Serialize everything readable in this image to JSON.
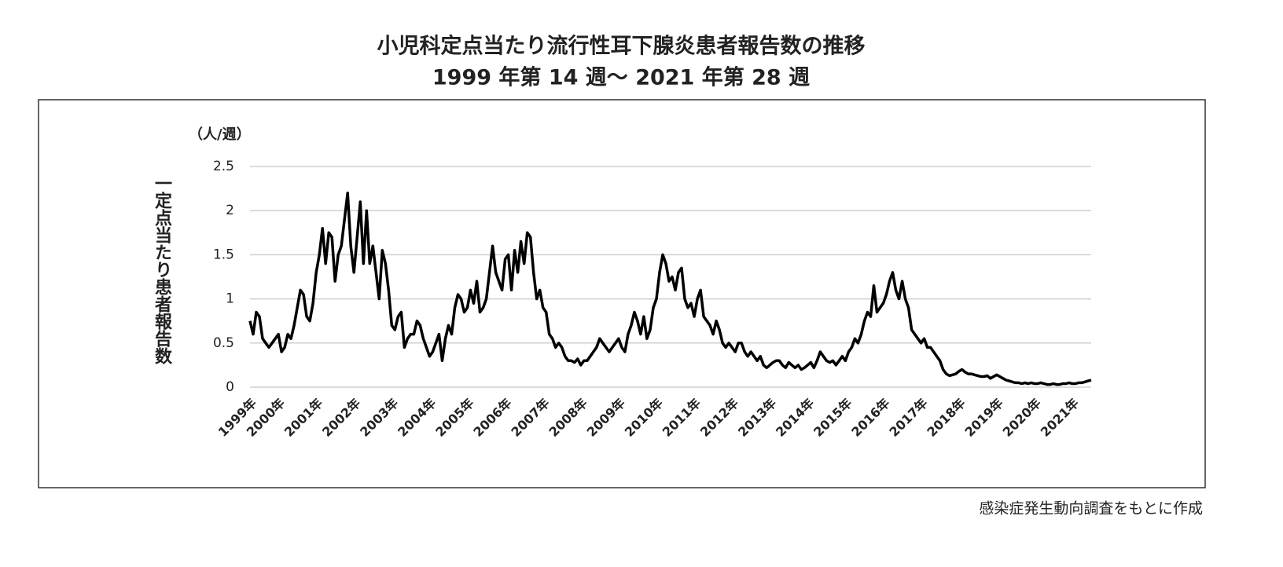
{
  "chart_data": {
    "type": "line",
    "title": "小児科定点当たり流行性耳下腺炎患者報告数の推移",
    "subtitle": "1999 年第 14 週〜 2021 年第 28 週",
    "y_label": "一定点当たり患者報告数",
    "y_unit": "（人/週）",
    "source": "感染症発生動向調査をもとに作成",
    "categories": [
      "1999年",
      null,
      null,
      null,
      null,
      null,
      null,
      null,
      null,
      "2000年",
      null,
      null,
      null,
      null,
      null,
      null,
      null,
      null,
      null,
      null,
      null,
      "2001年",
      null,
      null,
      null,
      null,
      null,
      null,
      null,
      null,
      null,
      null,
      null,
      "2002年",
      null,
      null,
      null,
      null,
      null,
      null,
      null,
      null,
      null,
      null,
      null,
      "2003年",
      null,
      null,
      null,
      null,
      null,
      null,
      null,
      null,
      null,
      null,
      null,
      "2004年",
      null,
      null,
      null,
      null,
      null,
      null,
      null,
      null,
      null,
      null,
      null,
      "2005年",
      null,
      null,
      null,
      null,
      null,
      null,
      null,
      null,
      null,
      null,
      null,
      "2006年",
      null,
      null,
      null,
      null,
      null,
      null,
      null,
      null,
      null,
      null,
      null,
      "2007年",
      null,
      null,
      null,
      null,
      null,
      null,
      null,
      null,
      null,
      null,
      null,
      "2008年",
      null,
      null,
      null,
      null,
      null,
      null,
      null,
      null,
      null,
      null,
      null,
      "2009年",
      null,
      null,
      null,
      null,
      null,
      null,
      null,
      null,
      null,
      null,
      null,
      "2010年",
      null,
      null,
      null,
      null,
      null,
      null,
      null,
      null,
      null,
      null,
      null,
      "2011年",
      null,
      null,
      null,
      null,
      null,
      null,
      null,
      null,
      null,
      null,
      null,
      "2012年",
      null,
      null,
      null,
      null,
      null,
      null,
      null,
      null,
      null,
      null,
      null,
      "2013年",
      null,
      null,
      null,
      null,
      null,
      null,
      null,
      null,
      null,
      null,
      null,
      "2014年",
      null,
      null,
      null,
      null,
      null,
      null,
      null,
      null,
      null,
      null,
      null,
      "2015年",
      null,
      null,
      null,
      null,
      null,
      null,
      null,
      null,
      null,
      null,
      null,
      "2016年",
      null,
      null,
      null,
      null,
      null,
      null,
      null,
      null,
      null,
      null,
      null,
      "2017年",
      null,
      null,
      null,
      null,
      null,
      null,
      null,
      null,
      null,
      null,
      null,
      "2018年",
      null,
      null,
      null,
      null,
      null,
      null,
      null,
      null,
      null,
      null,
      null,
      "2019年",
      null,
      null,
      null,
      null,
      null,
      null,
      null,
      null,
      null,
      null,
      null,
      "2020年",
      null,
      null,
      null,
      null,
      null,
      null,
      null,
      null,
      null,
      null,
      null,
      "2021年",
      null,
      null,
      null,
      null,
      null,
      null
    ],
    "values": [
      0.75,
      0.6,
      0.85,
      0.8,
      0.55,
      0.5,
      0.45,
      0.5,
      0.55,
      0.6,
      0.4,
      0.45,
      0.6,
      0.55,
      0.7,
      0.9,
      1.1,
      1.05,
      0.8,
      0.75,
      0.95,
      1.3,
      1.5,
      1.8,
      1.4,
      1.75,
      1.7,
      1.2,
      1.5,
      1.6,
      1.9,
      2.2,
      1.6,
      1.3,
      1.7,
      2.1,
      1.4,
      2.0,
      1.4,
      1.6,
      1.3,
      1.0,
      1.55,
      1.4,
      1.1,
      0.7,
      0.65,
      0.8,
      0.85,
      0.45,
      0.55,
      0.6,
      0.6,
      0.75,
      0.7,
      0.55,
      0.45,
      0.35,
      0.4,
      0.5,
      0.6,
      0.3,
      0.55,
      0.7,
      0.6,
      0.9,
      1.05,
      1.0,
      0.85,
      0.9,
      1.1,
      0.95,
      1.2,
      0.85,
      0.9,
      1.0,
      1.3,
      1.6,
      1.3,
      1.2,
      1.1,
      1.45,
      1.5,
      1.1,
      1.55,
      1.3,
      1.65,
      1.4,
      1.75,
      1.7,
      1.3,
      1.0,
      1.1,
      0.9,
      0.85,
      0.6,
      0.55,
      0.45,
      0.5,
      0.45,
      0.35,
      0.3,
      0.3,
      0.28,
      0.32,
      0.25,
      0.3,
      0.3,
      0.35,
      0.4,
      0.45,
      0.55,
      0.5,
      0.45,
      0.4,
      0.45,
      0.5,
      0.55,
      0.45,
      0.4,
      0.6,
      0.7,
      0.85,
      0.75,
      0.6,
      0.8,
      0.55,
      0.65,
      0.9,
      1.0,
      1.3,
      1.5,
      1.4,
      1.2,
      1.25,
      1.1,
      1.3,
      1.35,
      1.0,
      0.9,
      0.95,
      0.8,
      1.0,
      1.1,
      0.8,
      0.75,
      0.7,
      0.6,
      0.75,
      0.65,
      0.5,
      0.45,
      0.5,
      0.45,
      0.4,
      0.5,
      0.5,
      0.4,
      0.35,
      0.4,
      0.35,
      0.3,
      0.35,
      0.25,
      0.22,
      0.25,
      0.28,
      0.3,
      0.3,
      0.25,
      0.22,
      0.28,
      0.25,
      0.22,
      0.25,
      0.2,
      0.22,
      0.25,
      0.28,
      0.22,
      0.3,
      0.4,
      0.35,
      0.3,
      0.28,
      0.3,
      0.25,
      0.3,
      0.35,
      0.3,
      0.4,
      0.45,
      0.55,
      0.5,
      0.6,
      0.75,
      0.85,
      0.8,
      1.15,
      0.85,
      0.9,
      0.95,
      1.05,
      1.2,
      1.3,
      1.1,
      1.0,
      1.2,
      1.0,
      0.9,
      0.65,
      0.6,
      0.55,
      0.5,
      0.55,
      0.45,
      0.45,
      0.4,
      0.35,
      0.3,
      0.2,
      0.15,
      0.13,
      0.14,
      0.15,
      0.18,
      0.2,
      0.17,
      0.15,
      0.15,
      0.14,
      0.13,
      0.12,
      0.12,
      0.13,
      0.1,
      0.12,
      0.14,
      0.12,
      0.1,
      0.08,
      0.07,
      0.06,
      0.05,
      0.05,
      0.04,
      0.05,
      0.04,
      0.05,
      0.04,
      0.04,
      0.05,
      0.04,
      0.03,
      0.03,
      0.04,
      0.03,
      0.03,
      0.04,
      0.04,
      0.05,
      0.04,
      0.04,
      0.05,
      0.05,
      0.06,
      0.07,
      0.08
    ],
    "color": "#000000",
    "ylim": [
      0,
      2.5
    ],
    "yticks": [
      0,
      0.5,
      1,
      1.5,
      2,
      2.5
    ],
    "grid": true
  }
}
